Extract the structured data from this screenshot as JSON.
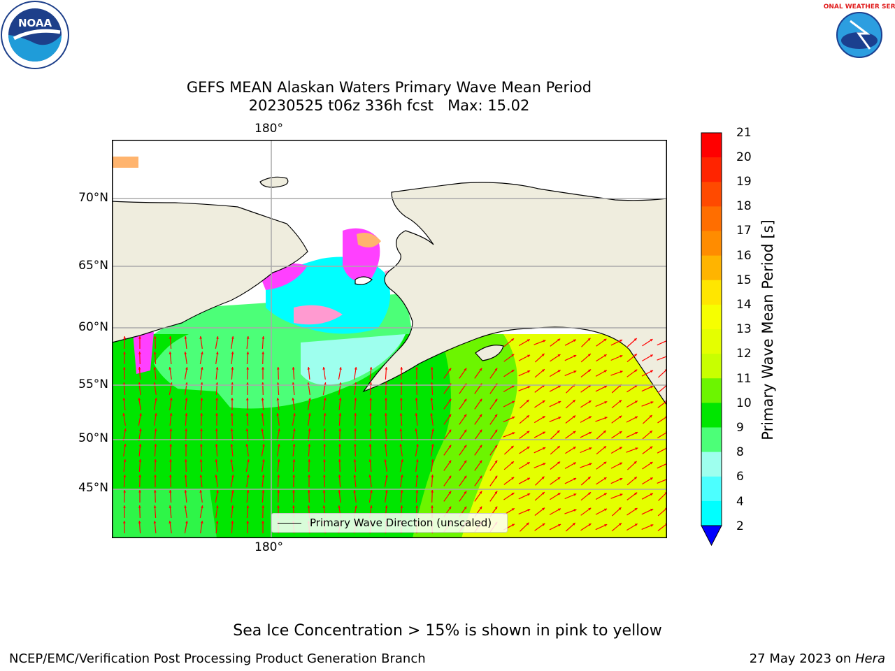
{
  "title_line1": "GEFS MEAN Alaskan Waters Primary Wave Mean Period",
  "title_line2": "20230525 t06z 336h fcst   Max: 15.02",
  "map": {
    "lon_label_top": "180°",
    "lon_label_bottom": "180°",
    "lat_labels": [
      "70°N",
      "65°N",
      "60°N",
      "55°N",
      "50°N",
      "45°N"
    ],
    "legend_text": "Primary Wave Direction (unscaled)",
    "land_color": "#efedde",
    "arrow_color": "#ff0000"
  },
  "colorbar": {
    "label": "Primary Wave Mean Period [s]",
    "ticks": [
      "21",
      "20",
      "19",
      "18",
      "17",
      "16",
      "15",
      "14",
      "13",
      "12",
      "11",
      "10",
      "9",
      "8",
      "6",
      "4",
      "2"
    ],
    "colors": [
      "#ff0000",
      "#ff2400",
      "#ff4a00",
      "#ff6e00",
      "#ff8c00",
      "#ffb400",
      "#ffe600",
      "#f6ff00",
      "#e4ff00",
      "#c8ff00",
      "#6cf500",
      "#00e600",
      "#4cff78",
      "#9effee",
      "#4cffff",
      "#00ffff",
      "#0082ff"
    ],
    "under_color": "#0000ff"
  },
  "note": "Sea Ice Concentration > 15% is shown in pink to yellow",
  "footer_left": "NCEP/EMC/Verification Post Processing Product Generation Branch",
  "footer_right_date": "27 May 2023 on ",
  "footer_right_host": "Hera",
  "logos": {
    "left": "NOAA",
    "right": "NATIONAL WEATHER SERVICE"
  }
}
